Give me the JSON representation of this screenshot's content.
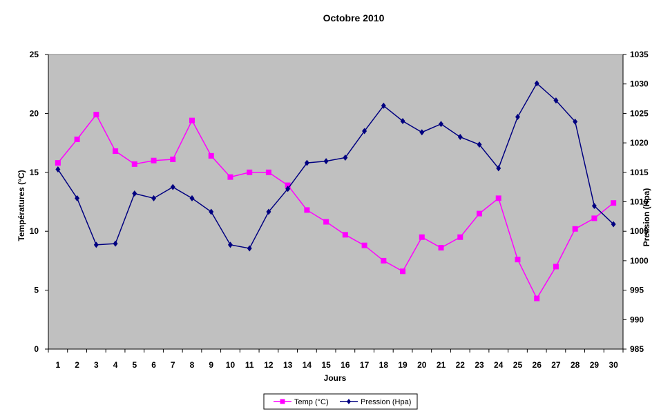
{
  "chart_data": {
    "type": "line",
    "title": "Octobre 2010",
    "xlabel": "Jours",
    "ylabel": "Températures  (°C)",
    "y2label": "Pression (Hpa)",
    "x": [
      1,
      2,
      3,
      4,
      5,
      6,
      7,
      8,
      9,
      10,
      11,
      12,
      13,
      14,
      15,
      16,
      17,
      18,
      19,
      20,
      21,
      22,
      23,
      24,
      25,
      26,
      27,
      28,
      29,
      30
    ],
    "ylim": [
      0,
      25
    ],
    "yticks": [
      0,
      5,
      10,
      15,
      20,
      25
    ],
    "y2lim": [
      985,
      1035
    ],
    "y2ticks": [
      985,
      990,
      995,
      1000,
      1005,
      1010,
      1015,
      1020,
      1025,
      1030,
      1035
    ],
    "grid": false,
    "legend_position": "bottom",
    "colors": {
      "plot_background": "#c0c0c0"
    },
    "series": [
      {
        "name": "Temp (°C)",
        "axis": "left",
        "color": "#ff00ff",
        "marker": "square",
        "values": [
          15.8,
          17.8,
          19.9,
          16.8,
          15.7,
          16.0,
          16.1,
          19.4,
          16.4,
          14.6,
          15.0,
          15.0,
          13.9,
          11.8,
          10.8,
          9.7,
          8.8,
          7.5,
          6.6,
          9.5,
          8.6,
          9.5,
          11.5,
          12.8,
          7.6,
          4.3,
          7.0,
          10.2,
          11.1,
          12.4
        ]
      },
      {
        "name": "Pression (Hpa)",
        "axis": "right",
        "color": "#000080",
        "marker": "diamond",
        "values": [
          1015.5,
          1010.6,
          1002.7,
          1002.9,
          1011.4,
          1010.6,
          1012.5,
          1010.6,
          1008.3,
          1002.7,
          1002.1,
          1008.3,
          1012.2,
          1016.6,
          1016.9,
          1017.5,
          1022.0,
          1026.3,
          1023.7,
          1021.8,
          1023.2,
          1021.0,
          1019.7,
          1015.7,
          1024.4,
          1030.1,
          1027.2,
          1023.6,
          1009.3,
          1006.2
        ]
      }
    ]
  }
}
